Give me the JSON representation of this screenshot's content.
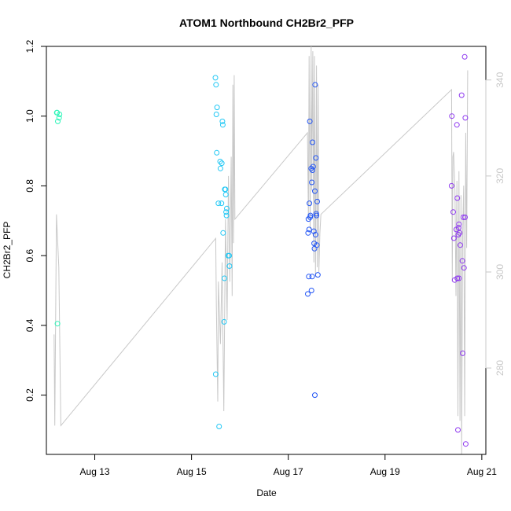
{
  "chart_data": {
    "type": "scatter",
    "title": "ATOM1 Northbound CH2Br2_PFP",
    "xlabel": "Date",
    "ylabel": "CH2Br2_PFP",
    "xlim": [
      "2016-08-12 00:00",
      "2016-08-21 02:00"
    ],
    "ylim": [
      0.03,
      1.2
    ],
    "y_ticks": [
      0.2,
      0.4,
      0.6,
      0.8,
      1.0,
      1.2
    ],
    "y_tick_labels": [
      "0.2",
      "0.4",
      "0.6",
      "0.8",
      "1.0",
      "1.2"
    ],
    "x_ticks": [
      {
        "x": "2016-08-13 00:00",
        "label": "Aug 13"
      },
      {
        "x": "2016-08-15 00:00",
        "label": "Aug 15"
      },
      {
        "x": "2016-08-17 00:00",
        "label": "Aug 17"
      },
      {
        "x": "2016-08-19 00:00",
        "label": "Aug 19"
      },
      {
        "x": "2016-08-21 00:00",
        "label": "Aug 21"
      }
    ],
    "y2lim": [
      262,
      347
    ],
    "y2_ticks": [
      280,
      300,
      320,
      340
    ],
    "y2_tick_labels": [
      "280",
      "300",
      "320",
      "340"
    ],
    "background_line_color": "#c8c8c8",
    "background_line": [
      [
        "2016-08-12 03:50",
        287
      ],
      [
        "2016-08-12 04:10",
        268
      ],
      [
        "2016-08-12 05:00",
        312
      ],
      [
        "2016-08-12 06:10",
        301
      ],
      [
        "2016-08-12 07:10",
        268
      ],
      [
        "2016-08-15 12:00",
        307
      ],
      [
        "2016-08-15 12:20",
        293
      ],
      [
        "2016-08-15 13:00",
        273
      ],
      [
        "2016-08-15 13:20",
        298
      ],
      [
        "2016-08-15 14:20",
        285
      ],
      [
        "2016-08-15 15:10",
        302
      ],
      [
        "2016-08-15 16:00",
        271
      ],
      [
        "2016-08-15 16:50",
        311
      ],
      [
        "2016-08-15 17:40",
        290
      ],
      [
        "2016-08-15 18:20",
        320
      ],
      [
        "2016-08-15 19:00",
        298
      ],
      [
        "2016-08-15 19:40",
        324
      ],
      [
        "2016-08-15 20:10",
        295
      ],
      [
        "2016-08-15 20:30",
        339
      ],
      [
        "2016-08-15 20:50",
        306
      ],
      [
        "2016-08-15 21:10",
        341
      ],
      [
        "2016-08-15 21:30",
        311
      ],
      [
        "2016-08-17 09:30",
        329
      ],
      [
        "2016-08-17 10:00",
        311
      ],
      [
        "2016-08-17 10:20",
        345
      ],
      [
        "2016-08-17 10:50",
        309
      ],
      [
        "2016-08-17 11:20",
        347
      ],
      [
        "2016-08-17 11:40",
        317
      ],
      [
        "2016-08-17 12:10",
        346
      ],
      [
        "2016-08-17 12:40",
        302
      ],
      [
        "2016-08-17 13:00",
        345
      ],
      [
        "2016-08-17 13:30",
        299
      ],
      [
        "2016-08-17 14:00",
        343
      ],
      [
        "2016-08-17 14:20",
        301
      ],
      [
        "2016-08-17 14:50",
        339
      ],
      [
        "2016-08-17 15:10",
        300
      ],
      [
        "2016-08-17 15:40",
        308
      ],
      [
        "2016-08-17 16:10",
        312
      ],
      [
        "2016-08-20 09:00",
        338
      ],
      [
        "2016-08-20 09:20",
        298
      ],
      [
        "2016-08-20 09:40",
        324
      ],
      [
        "2016-08-20 10:00",
        325
      ],
      [
        "2016-08-20 10:40",
        317
      ],
      [
        "2016-08-20 11:10",
        295
      ],
      [
        "2016-08-20 11:40",
        319
      ],
      [
        "2016-08-20 12:10",
        270
      ],
      [
        "2016-08-20 12:40",
        321
      ],
      [
        "2016-08-20 13:10",
        269
      ],
      [
        "2016-08-20 13:40",
        316
      ],
      [
        "2016-08-20 14:00",
        262
      ],
      [
        "2016-08-20 14:30",
        308
      ],
      [
        "2016-08-20 15:00",
        318
      ],
      [
        "2016-08-20 15:30",
        270
      ],
      [
        "2016-08-20 16:00",
        329
      ],
      [
        "2016-08-20 16:30",
        305
      ],
      [
        "2016-08-20 17:00",
        342
      ]
    ],
    "series": [
      {
        "color": "#2bf5b8",
        "x": [
          "2016-08-12 05:10",
          "2016-08-12 05:20",
          "2016-08-12 05:40",
          "2016-08-12 06:20",
          "2016-08-12 06:30",
          "2016-08-12 05:30"
        ],
        "y": [
          1.01,
          1.01,
          0.985,
          0.995,
          1.005,
          0.405
        ]
      },
      {
        "color": "#22c8f5",
        "x": [
          "2016-08-15 11:50",
          "2016-08-15 12:10",
          "2016-08-15 12:40",
          "2016-08-15 12:20",
          "2016-08-15 12:30",
          "2016-08-15 14:10",
          "2016-08-15 15:00",
          "2016-08-15 14:20",
          "2016-08-15 15:30",
          "2016-08-15 15:20",
          "2016-08-15 16:50",
          "2016-08-15 16:30",
          "2016-08-15 17:00",
          "2016-08-15 17:20",
          "2016-08-15 17:30",
          "2016-08-15 13:20",
          "2016-08-15 14:50",
          "2016-08-15 18:10",
          "2016-08-15 17:10",
          "2016-08-15 15:40",
          "2016-08-15 16:20",
          "2016-08-15 18:50",
          "2016-08-15 16:10",
          "2016-08-15 12:00",
          "2016-08-15 18:40",
          "2016-08-15 13:40"
        ],
        "y": [
          1.11,
          1.09,
          1.025,
          1.005,
          0.895,
          0.87,
          0.865,
          0.85,
          0.975,
          0.985,
          0.79,
          0.79,
          0.775,
          0.715,
          0.735,
          0.75,
          0.75,
          0.6,
          0.725,
          0.665,
          0.535,
          0.57,
          0.41,
          0.26,
          0.6,
          0.11
        ]
      },
      {
        "color": "#2255f5",
        "x": [
          "2016-08-17 13:20",
          "2016-08-17 10:40",
          "2016-08-17 12:00",
          "2016-08-17 11:20",
          "2016-08-17 12:20",
          "2016-08-17 12:00",
          "2016-08-17 11:40",
          "2016-08-17 13:40",
          "2016-08-17 13:10",
          "2016-08-17 10:00",
          "2016-08-17 14:20",
          "2016-08-17 10:30",
          "2016-08-17 11:00",
          "2016-08-17 10:50",
          "2016-08-17 13:50",
          "2016-08-17 14:00",
          "2016-08-17 13:30",
          "2016-08-17 12:40",
          "2016-08-17 14:10",
          "2016-08-17 09:50",
          "2016-08-17 10:20",
          "2016-08-17 12:50",
          "2016-08-17 13:00",
          "2016-08-17 11:50",
          "2016-08-17 14:40",
          "2016-08-17 10:10",
          "2016-08-17 11:30",
          "2016-08-17 09:40",
          "2016-08-17 13:10"
        ],
        "y": [
          1.09,
          0.985,
          0.925,
          0.85,
          0.855,
          0.845,
          0.81,
          0.88,
          0.785,
          0.705,
          0.755,
          0.75,
          0.715,
          0.71,
          0.72,
          0.715,
          0.66,
          0.67,
          0.63,
          0.665,
          0.675,
          0.635,
          0.62,
          0.54,
          0.545,
          0.54,
          0.5,
          0.49,
          0.2
        ]
      },
      {
        "color": "#8e38f0",
        "x": [
          "2016-08-20 15:30",
          "2016-08-20 09:10",
          "2016-08-20 14:00",
          "2016-08-20 15:50",
          "2016-08-20 11:40",
          "2016-08-20 09:00",
          "2016-08-20 11:50",
          "2016-08-20 09:50",
          "2016-08-20 14:50",
          "2016-08-20 15:40",
          "2016-08-20 12:40",
          "2016-08-20 12:30",
          "2016-08-20 11:20",
          "2016-08-20 10:10",
          "2016-08-20 13:00",
          "2016-08-20 13:20",
          "2016-08-20 14:20",
          "2016-08-20 15:10",
          "2016-08-20 11:50",
          "2016-08-20 12:40",
          "2016-08-20 10:30",
          "2016-08-20 14:30",
          "2016-08-20 12:10",
          "2016-08-20 16:00",
          "2016-08-20 12:20"
        ],
        "y": [
          1.17,
          1.0,
          1.06,
          0.995,
          0.975,
          0.8,
          0.765,
          0.725,
          0.71,
          0.71,
          0.69,
          0.68,
          0.675,
          0.65,
          0.665,
          0.63,
          0.585,
          0.565,
          0.535,
          0.535,
          0.53,
          0.32,
          0.1,
          0.06,
          0.66
        ]
      }
    ]
  }
}
